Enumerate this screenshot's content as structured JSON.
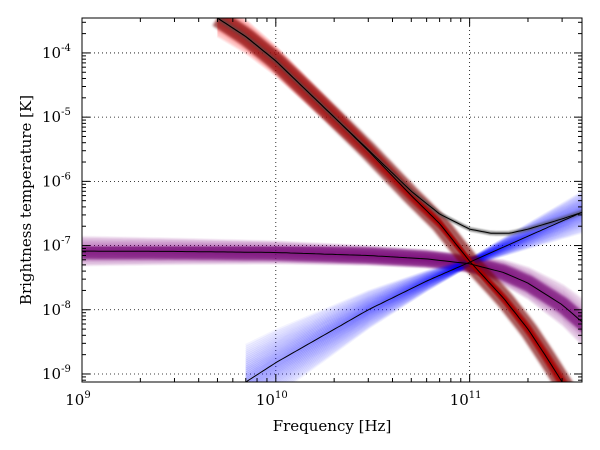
{
  "chart_data": {
    "type": "line",
    "title": "",
    "xlabel": "Frequency [Hz]",
    "ylabel": "Brightness temperature [K]",
    "x_scale": "log",
    "y_scale": "log",
    "xlim": [
      1000000000.0,
      380000000000.0
    ],
    "ylim": [
      7.5e-10,
      0.00035
    ],
    "grid": true,
    "legend": "none",
    "x_ticks": [
      {
        "value": 1000000000.0,
        "base": "10",
        "exp": "9"
      },
      {
        "value": 10000000000.0,
        "base": "10",
        "exp": "10"
      },
      {
        "value": 100000000000.0,
        "base": "10",
        "exp": "11"
      }
    ],
    "y_ticks": [
      {
        "value": 1e-09,
        "base": "10",
        "exp": "-9"
      },
      {
        "value": 1e-08,
        "base": "10",
        "exp": "-8"
      },
      {
        "value": 1e-07,
        "base": "10",
        "exp": "-7"
      },
      {
        "value": 1e-06,
        "base": "10",
        "exp": "-6"
      },
      {
        "value": 1e-05,
        "base": "10",
        "exp": "-5"
      },
      {
        "value": 0.0001,
        "base": "10",
        "exp": "-4"
      }
    ],
    "series": [
      {
        "color": "#8b0a8b",
        "band_color": "#800080",
        "x": [
          1000000000.0,
          3000000000.0,
          10000000000.0,
          30000000000.0,
          60000000000.0,
          100000000000.0,
          150000000000.0,
          200000000000.0,
          300000000000.0,
          380000000000.0
        ],
        "values": [
          8.2e-08,
          8.1e-08,
          7.8e-08,
          7e-08,
          6.2e-08,
          5.2e-08,
          3.8e-08,
          2.6e-08,
          1.2e-08,
          6.5e-09
        ]
      },
      {
        "color": "#0000ff",
        "band_color": "#0000ff",
        "x": [
          7000000000.0,
          10000000000.0,
          30000000000.0,
          60000000000.0,
          100000000000.0,
          200000000000.0,
          380000000000.0
        ],
        "values": [
          7.5e-10,
          1.5e-09,
          1e-08,
          2.8e-08,
          5.5e-08,
          1.4e-07,
          3.3e-07
        ]
      },
      {
        "color": "#ff0000",
        "band_color": "#ff0000",
        "x": [
          5000000000.0,
          7000000000.0,
          10000000000.0,
          20000000000.0,
          30000000000.0,
          50000000000.0,
          70000000000.0,
          100000000000.0,
          150000000000.0,
          200000000000.0,
          250000000000.0,
          300000000000.0
        ],
        "values": [
          0.00035,
          0.00018,
          7.5e-05,
          1e-05,
          3e-06,
          6e-07,
          2.2e-07,
          5.7e-08,
          1.5e-08,
          5e-09,
          1.8e-09,
          7.5e-10
        ]
      },
      {
        "color": "#000000",
        "band_color": "#555555",
        "x": [
          5000000000.0,
          7000000000.0,
          10000000000.0,
          20000000000.0,
          30000000000.0,
          50000000000.0,
          70000000000.0,
          100000000000.0,
          130000000000.0,
          160000000000.0,
          200000000000.0,
          300000000000.0,
          380000000000.0
        ],
        "values": [
          0.00035,
          0.00018,
          7.5e-05,
          1e-05,
          3.1e-06,
          7e-07,
          3.1e-07,
          1.8e-07,
          1.55e-07,
          1.55e-07,
          1.8e-07,
          2.6e-07,
          3.3e-07
        ]
      }
    ]
  }
}
